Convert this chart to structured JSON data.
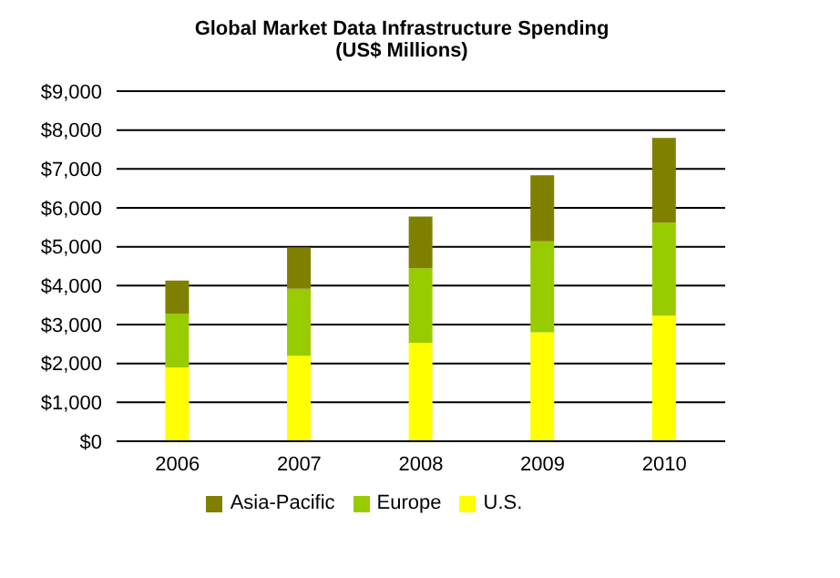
{
  "chart_data": {
    "type": "bar",
    "title": "Global Market Data Infrastructure Spending",
    "subtitle": "(US$ Millions)",
    "categories": [
      "2006",
      "2007",
      "2008",
      "2009",
      "2010"
    ],
    "stacked": true,
    "series": [
      {
        "name": "U.S.",
        "color": "#ffff00",
        "values": [
          1900,
          2200,
          2530,
          2800,
          3230
        ]
      },
      {
        "name": "Europe",
        "color": "#99cc00",
        "values": [
          1380,
          1720,
          1920,
          2340,
          2390
        ]
      },
      {
        "name": "Asia-Pacific",
        "color": "#808000",
        "values": [
          850,
          1060,
          1330,
          1700,
          2180
        ]
      }
    ],
    "ylim": [
      0,
      9000
    ],
    "yticks": [
      {
        "value": 0,
        "label": "$0"
      },
      {
        "value": 1000,
        "label": "$1,000"
      },
      {
        "value": 2000,
        "label": "$2,000"
      },
      {
        "value": 3000,
        "label": "$3,000"
      },
      {
        "value": 4000,
        "label": "$4,000"
      },
      {
        "value": 5000,
        "label": "$5,000"
      },
      {
        "value": 6000,
        "label": "$6,000"
      },
      {
        "value": 7000,
        "label": "$7,000"
      },
      {
        "value": 8000,
        "label": "$8,000"
      },
      {
        "value": 9000,
        "label": "$9,000"
      }
    ],
    "grid": "y",
    "legend": "bottom"
  }
}
